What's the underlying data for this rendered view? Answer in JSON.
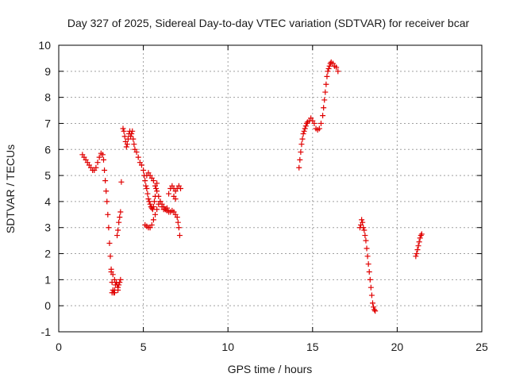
{
  "chart_data": {
    "type": "scatter",
    "title": "Day 327 of 2025, Sidereal Day-to-day VTEC variation (SDTVAR) for receiver bcar",
    "xlabel": "GPS time / hours",
    "ylabel": "SDTVAR / TECUs",
    "xlim": [
      0,
      25
    ],
    "ylim": [
      -1,
      10
    ],
    "xticks": [
      0,
      5,
      10,
      15,
      20,
      25
    ],
    "yticks": [
      -1,
      0,
      1,
      2,
      3,
      4,
      5,
      6,
      7,
      8,
      9,
      10
    ],
    "grid": true,
    "marker": "plus",
    "color": "#e00000",
    "series": [
      {
        "x": [
          1.4,
          1.5,
          1.6,
          1.7,
          1.8,
          1.9,
          2.0,
          2.1,
          2.2,
          2.3,
          2.4,
          2.5,
          2.6,
          2.65,
          2.7,
          2.75,
          2.8,
          2.85,
          2.9,
          2.95,
          3.0,
          3.05,
          3.1,
          3.15,
          3.2,
          3.25,
          3.3,
          3.35,
          3.4,
          3.45,
          3.5,
          3.55,
          3.6,
          3.65,
          3.1,
          3.2,
          3.3,
          3.4,
          3.5,
          3.15,
          3.3,
          3.45,
          3.5,
          3.55,
          3.6,
          3.65,
          3.7
        ],
        "y": [
          5.8,
          5.7,
          5.6,
          5.5,
          5.4,
          5.3,
          5.2,
          5.2,
          5.3,
          5.5,
          5.7,
          5.85,
          5.8,
          5.6,
          5.2,
          4.8,
          4.4,
          4.0,
          3.5,
          3.0,
          2.4,
          1.9,
          1.3,
          0.9,
          0.6,
          0.5,
          0.6,
          0.8,
          0.9,
          0.8,
          0.7,
          0.8,
          0.9,
          1.0,
          1.4,
          1.2,
          1.0,
          0.9,
          0.6,
          0.5,
          0.5,
          2.7,
          2.9,
          3.2,
          3.4,
          3.6,
          4.75
        ]
      },
      {
        "x": [
          3.8,
          3.85,
          3.9,
          3.95,
          4.0,
          4.05,
          4.1,
          4.15,
          4.2,
          4.25,
          4.3,
          4.35,
          4.4,
          4.45,
          4.5,
          4.6,
          4.7,
          4.8,
          4.9,
          5.0,
          5.05,
          5.1,
          5.15,
          5.2,
          5.25,
          5.3,
          5.35,
          5.4,
          5.45,
          5.5,
          5.55,
          5.6,
          5.65,
          5.7,
          5.75,
          5.8,
          5.2,
          5.3,
          5.4,
          5.5,
          5.6,
          5.7,
          5.8,
          5.9,
          6.0,
          6.1,
          6.2,
          6.3,
          6.4
        ],
        "y": [
          6.8,
          6.7,
          6.5,
          6.3,
          6.1,
          6.2,
          6.4,
          6.6,
          6.7,
          6.5,
          6.6,
          6.7,
          6.4,
          6.2,
          6.0,
          5.9,
          5.7,
          5.5,
          5.4,
          5.2,
          5.0,
          4.8,
          4.6,
          4.5,
          4.3,
          4.1,
          4.0,
          3.9,
          3.8,
          3.75,
          3.7,
          3.8,
          4.0,
          4.2,
          4.5,
          4.7,
          5.0,
          5.1,
          5.0,
          4.9,
          4.8,
          4.6,
          4.4,
          4.2,
          4.0,
          3.8,
          3.7,
          3.7,
          3.75
        ]
      },
      {
        "x": [
          5.1,
          5.2,
          5.3,
          5.4,
          5.5,
          5.6,
          5.7,
          5.8,
          5.9,
          6.0,
          6.1,
          6.2,
          6.3,
          6.4,
          6.5,
          6.6,
          6.7,
          6.8,
          6.9,
          7.0,
          7.05,
          7.1,
          7.15,
          6.5,
          6.6,
          6.7,
          6.8,
          6.9,
          7.0,
          7.1,
          7.2,
          6.8,
          6.9
        ],
        "y": [
          3.1,
          3.05,
          3.0,
          3.0,
          3.1,
          3.3,
          3.5,
          3.7,
          3.9,
          4.0,
          3.9,
          3.8,
          3.7,
          3.65,
          3.6,
          3.6,
          3.65,
          3.6,
          3.5,
          3.4,
          3.2,
          3.0,
          2.7,
          4.3,
          4.5,
          4.6,
          4.5,
          4.4,
          4.5,
          4.6,
          4.5,
          4.2,
          4.1
        ]
      },
      {
        "x": [
          14.2,
          14.25,
          14.3,
          14.35,
          14.4,
          14.45,
          14.5,
          14.55,
          14.6,
          14.65,
          14.7,
          14.8,
          14.9,
          15.0,
          15.1,
          15.2,
          15.3,
          15.4,
          15.5,
          15.6,
          15.65,
          15.7,
          15.75,
          15.8,
          15.85,
          15.9,
          15.95,
          16.0,
          16.05,
          16.1,
          16.2,
          16.3,
          16.4,
          16.5
        ],
        "y": [
          5.3,
          5.6,
          5.9,
          6.2,
          6.4,
          6.6,
          6.7,
          6.8,
          6.9,
          7.0,
          7.05,
          7.1,
          7.2,
          7.1,
          7.0,
          6.8,
          6.75,
          6.8,
          7.0,
          7.3,
          7.6,
          7.9,
          8.2,
          8.5,
          8.8,
          9.0,
          9.1,
          9.2,
          9.3,
          9.35,
          9.3,
          9.2,
          9.15,
          9.0
        ]
      },
      {
        "x": [
          17.8,
          17.85,
          17.9,
          17.95,
          18.0,
          18.05,
          18.1,
          18.15,
          18.2,
          18.25,
          18.3,
          18.35,
          18.4,
          18.45,
          18.5,
          18.55,
          18.6,
          18.65,
          18.7
        ],
        "y": [
          3.0,
          3.1,
          3.3,
          3.2,
          3.0,
          2.9,
          2.7,
          2.5,
          2.2,
          1.9,
          1.6,
          1.3,
          1.0,
          0.7,
          0.4,
          0.1,
          -0.05,
          -0.15,
          -0.2
        ]
      },
      {
        "x": [
          21.1,
          21.15,
          21.2,
          21.25,
          21.3,
          21.35,
          21.4,
          21.45
        ],
        "y": [
          1.9,
          2.0,
          2.15,
          2.3,
          2.45,
          2.6,
          2.7,
          2.75
        ]
      }
    ]
  }
}
